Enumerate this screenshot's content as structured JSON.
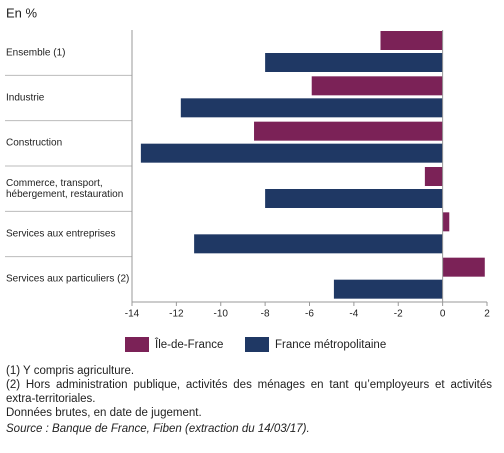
{
  "chart_data": {
    "type": "hbar",
    "unit": "En %",
    "categories": [
      "Ensemble (1)",
      "Industrie",
      "Construction",
      "Commerce, transport, hébergement, restauration",
      "Services aux entreprises",
      "Services aux particuliers (2)"
    ],
    "series": [
      {
        "name": "Île-de-France",
        "color": "#7b2257",
        "values": [
          -2.8,
          -5.9,
          -8.5,
          -0.8,
          0.3,
          1.9
        ]
      },
      {
        "name": "France métropolitaine",
        "color": "#1f3864",
        "values": [
          -8.0,
          -11.8,
          -13.6,
          -8.0,
          -11.2,
          -4.9
        ]
      }
    ],
    "xlim": [
      -14,
      2
    ],
    "xticks": [
      -14,
      -12,
      -10,
      -8,
      -6,
      -4,
      -2,
      0,
      2
    ],
    "notes": [
      "(1) Y compris agriculture.",
      "(2) Hors administration publique, activités des ménages en tant qu’employeurs et activités extra-territoriales.",
      "Données brutes, en date de jugement."
    ],
    "source": "Source : Banque de France, Fiben (extraction du 14/03/17)."
  }
}
